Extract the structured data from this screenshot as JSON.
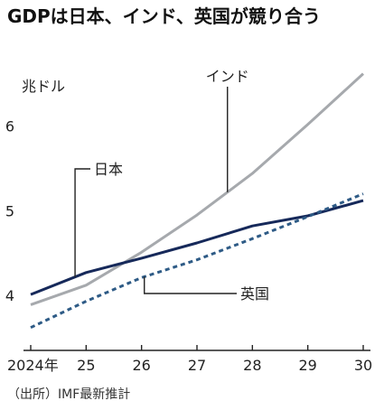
{
  "title": "GDPは日本、インド、英国が競り合う",
  "source": "（出所）IMF最新推計",
  "chart_data": {
    "type": "line",
    "title": "GDPは日本、インド、英国が競り合う",
    "ylabel": "兆ドル",
    "x": [
      2024,
      2025,
      2026,
      2027,
      2028,
      2029,
      2030
    ],
    "xtick_labels": [
      "2024年",
      "25",
      "26",
      "27",
      "28",
      "29",
      "30"
    ],
    "ytick_labels": [
      "4",
      "5",
      "6"
    ],
    "yticks": [
      4,
      5,
      6
    ],
    "xlim": [
      2024,
      2030
    ],
    "ylim": [
      3.35,
      6.85
    ],
    "grid": false,
    "legend": "none",
    "series": [
      {
        "name": "日本",
        "color": "#16295a",
        "dashed": false,
        "width": 3,
        "values": [
          4.01,
          4.27,
          4.44,
          4.62,
          4.82,
          4.94,
          5.12
        ]
      },
      {
        "name": "インド",
        "color": "#a6a9ad",
        "dashed": false,
        "width": 3,
        "values": [
          3.89,
          4.12,
          4.51,
          4.95,
          5.44,
          6.02,
          6.62
        ]
      },
      {
        "name": "英国",
        "color": "#2e5b86",
        "dashed": true,
        "width": 3,
        "values": [
          3.62,
          3.93,
          4.21,
          4.42,
          4.67,
          4.93,
          5.2
        ]
      }
    ],
    "annotations": [
      {
        "text": "インド",
        "series": "インド"
      },
      {
        "text": "日本",
        "series": "日本"
      },
      {
        "text": "英国",
        "series": "英国"
      }
    ]
  }
}
